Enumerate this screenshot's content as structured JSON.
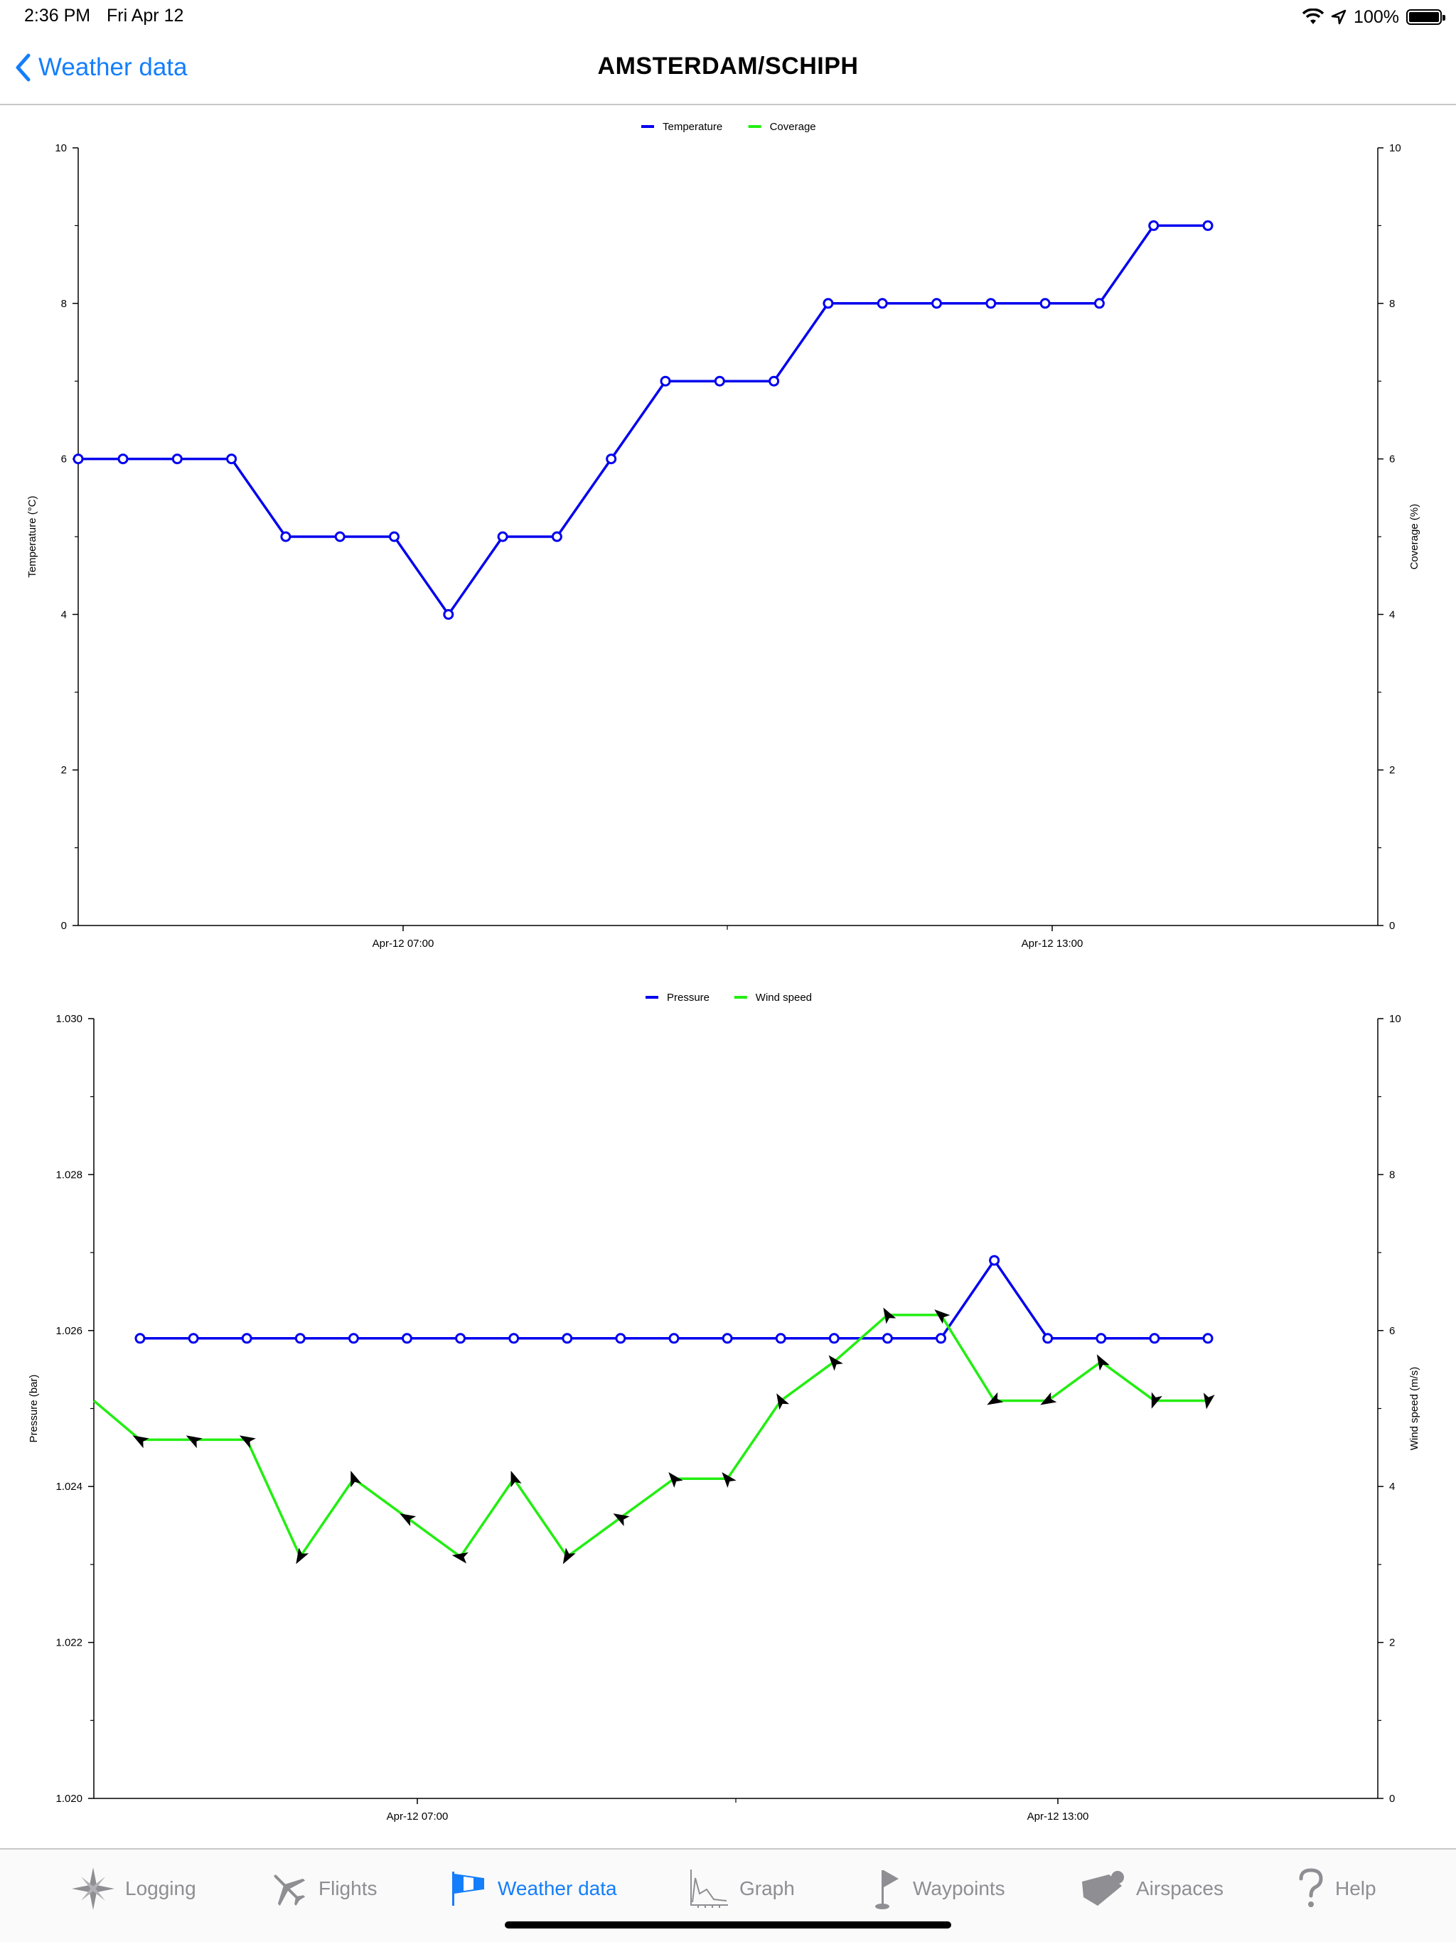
{
  "status_bar": {
    "time": "2:36 PM",
    "date": "Fri Apr 12",
    "battery": "100%"
  },
  "nav": {
    "back_label": "Weather data",
    "title": "AMSTERDAM/SCHIPH"
  },
  "colors": {
    "blue": "#0000ee",
    "green": "#22ee11",
    "accent": "#147efb",
    "inactive": "#8e8e93"
  },
  "chart_data": [
    {
      "type": "line",
      "legend_position": "top-center",
      "ylabel": "Temperature (°C)",
      "y2label": "Coverage (%)",
      "ylim": [
        0,
        10
      ],
      "y2lim": [
        0,
        10
      ],
      "yticks": [
        "0",
        "2",
        "4",
        "6",
        "8",
        "10"
      ],
      "y2ticks": [
        "0",
        "2",
        "4",
        "6",
        "8",
        "10"
      ],
      "xticks": [
        "Apr-12 07:00",
        "Apr-12 13:00"
      ],
      "series": [
        {
          "name": "Temperature",
          "color": "#0000ee",
          "values": [
            6,
            6,
            6,
            6,
            5,
            5,
            5,
            4,
            5,
            5,
            6,
            7,
            7,
            7,
            8,
            8,
            8,
            8,
            8,
            8,
            9,
            9
          ]
        },
        {
          "name": "Coverage",
          "color": "#22ee11",
          "values": []
        }
      ]
    },
    {
      "type": "line",
      "legend_position": "top-center",
      "ylabel": "Pressure (bar)",
      "y2label": "Wind speed (m/s)",
      "ylim": [
        1.02,
        1.03
      ],
      "y2lim": [
        0,
        10
      ],
      "yticks": [
        "1.020",
        "1.022",
        "1.024",
        "1.026",
        "1.028",
        "1.030"
      ],
      "y2ticks": [
        "0",
        "2",
        "4",
        "6",
        "8",
        "10"
      ],
      "xticks": [
        "Apr-12 07:00",
        "Apr-12 13:00"
      ],
      "series": [
        {
          "name": "Pressure",
          "color": "#0000ee",
          "values": [
            1.0259,
            1.0259,
            1.0259,
            1.0259,
            1.0259,
            1.0259,
            1.0259,
            1.0259,
            1.0259,
            1.0259,
            1.0259,
            1.0259,
            1.0259,
            1.0259,
            1.0259,
            1.0259,
            1.0269,
            1.0259,
            1.0259,
            1.0259,
            1.0259
          ]
        },
        {
          "name": "Wind speed",
          "color": "#22ee11",
          "values": [
            5.1,
            4.6,
            4.6,
            4.6,
            3.1,
            4.1,
            3.6,
            3.1,
            4.1,
            3.1,
            3.6,
            4.1,
            4.1,
            5.1,
            5.6,
            6.2,
            6.2,
            5.1,
            5.1,
            5.6,
            5.1,
            5.1
          ],
          "direction_deg": [
            null,
            300,
            300,
            300,
            210,
            340,
            300,
            280,
            340,
            210,
            300,
            320,
            320,
            330,
            320,
            330,
            310,
            240,
            240,
            330,
            200,
            190
          ]
        }
      ]
    }
  ],
  "tabs": [
    {
      "label": "Logging",
      "icon": "compass-star-icon",
      "active": false
    },
    {
      "label": "Flights",
      "icon": "airplane-icon",
      "active": false
    },
    {
      "label": "Weather data",
      "icon": "windsock-icon",
      "active": true
    },
    {
      "label": "Graph",
      "icon": "graph-icon",
      "active": false
    },
    {
      "label": "Waypoints",
      "icon": "flag-icon",
      "active": false
    },
    {
      "label": "Airspaces",
      "icon": "tag-icon",
      "active": false
    },
    {
      "label": "Help",
      "icon": "question-icon",
      "active": false
    }
  ]
}
